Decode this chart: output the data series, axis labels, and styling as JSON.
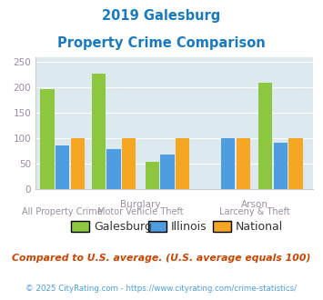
{
  "title_line1": "2019 Galesburg",
  "title_line2": "Property Crime Comparison",
  "title_color": "#1a7abf",
  "bar_data": [
    [
      197,
      85,
      100
    ],
    [
      227,
      79,
      100
    ],
    [
      53,
      68,
      100
    ],
    [
      0,
      100,
      100
    ],
    [
      210,
      91,
      100
    ]
  ],
  "colors": {
    "galesburg": "#8dc63f",
    "illinois": "#4d9de0",
    "national": "#f5a623"
  },
  "ylim": [
    0,
    260
  ],
  "yticks": [
    0,
    50,
    100,
    150,
    200,
    250
  ],
  "plot_bg": "#dce9ef",
  "legend_labels": [
    "Galesburg",
    "Illinois",
    "National"
  ],
  "legend_text_color": "#333333",
  "footer_text": "Compared to U.S. average. (U.S. average equals 100)",
  "footer_color": "#cc4400",
  "copyright_text": "© 2025 CityRating.com - https://www.cityrating.com/crime-statistics/",
  "copyright_color": "#4d9de0",
  "grid_color": "#ffffff",
  "tick_label_color": "#9b8ea0",
  "label_color": "#9b8ea0",
  "top_labels": [
    "",
    "Burglary",
    "",
    "Arson",
    ""
  ],
  "bottom_labels": [
    "All Property Crime",
    "Motor Vehicle Theft",
    "",
    "Larceny & Theft",
    ""
  ],
  "group_centers": [
    0.18,
    0.62,
    1.08,
    1.6,
    2.05
  ],
  "bar_width": 0.13
}
